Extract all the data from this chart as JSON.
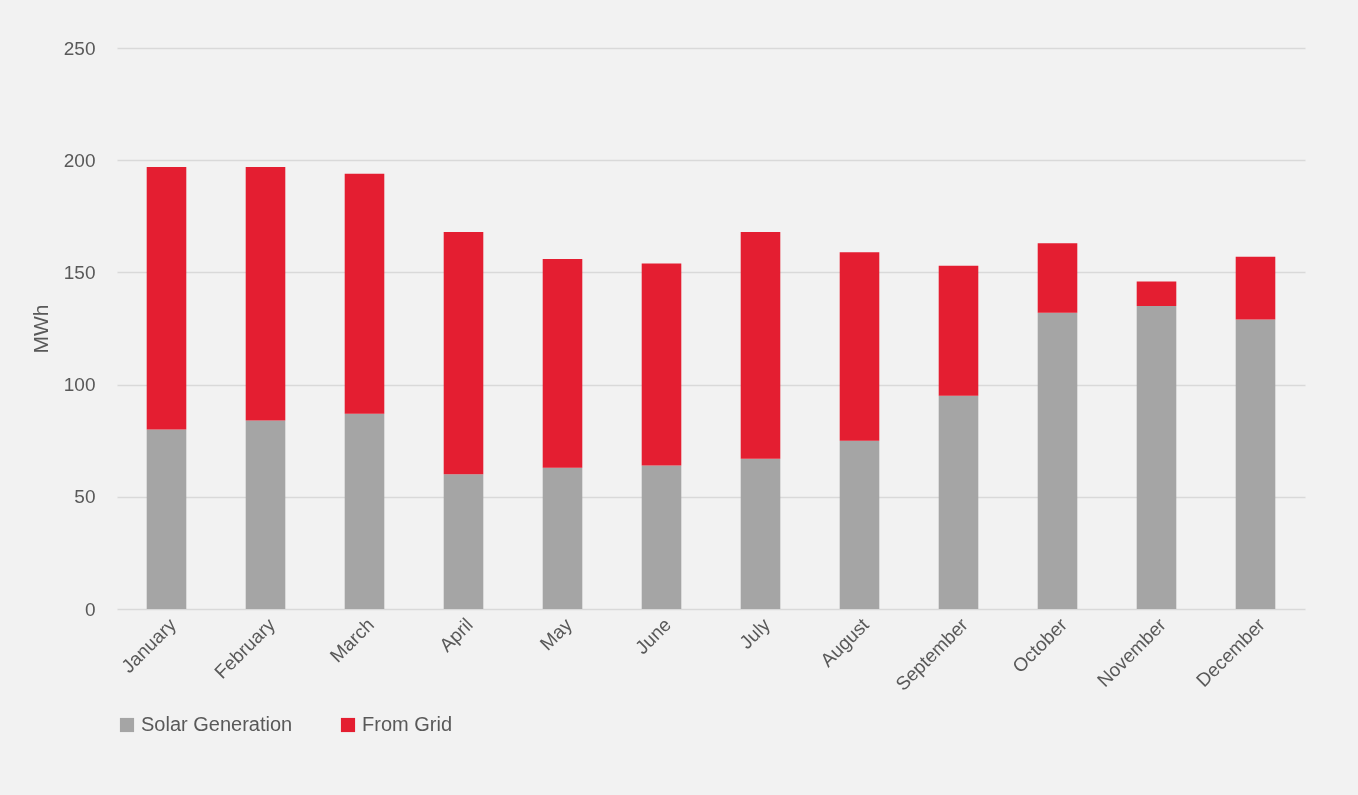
{
  "chart_data": {
    "type": "bar",
    "stacked": true,
    "ylabel": "MWh",
    "categories": [
      "January",
      "February",
      "March",
      "April",
      "May",
      "June",
      "July",
      "August",
      "September",
      "October",
      "November",
      "December"
    ],
    "series": [
      {
        "name": "Solar Generation",
        "color": "#a5a5a5",
        "values": [
          80,
          84,
          87,
          60,
          63,
          64,
          67,
          75,
          95,
          132,
          135,
          129
        ]
      },
      {
        "name": "From Grid",
        "color": "#e41e31",
        "values": [
          117,
          113,
          107,
          108,
          93,
          90,
          101,
          84,
          58,
          31,
          11,
          28
        ]
      }
    ],
    "ylim": [
      0,
      250
    ],
    "yticks": [
      0,
      50,
      100,
      150,
      200,
      250
    ],
    "grid": "y",
    "legend": "bottom"
  }
}
